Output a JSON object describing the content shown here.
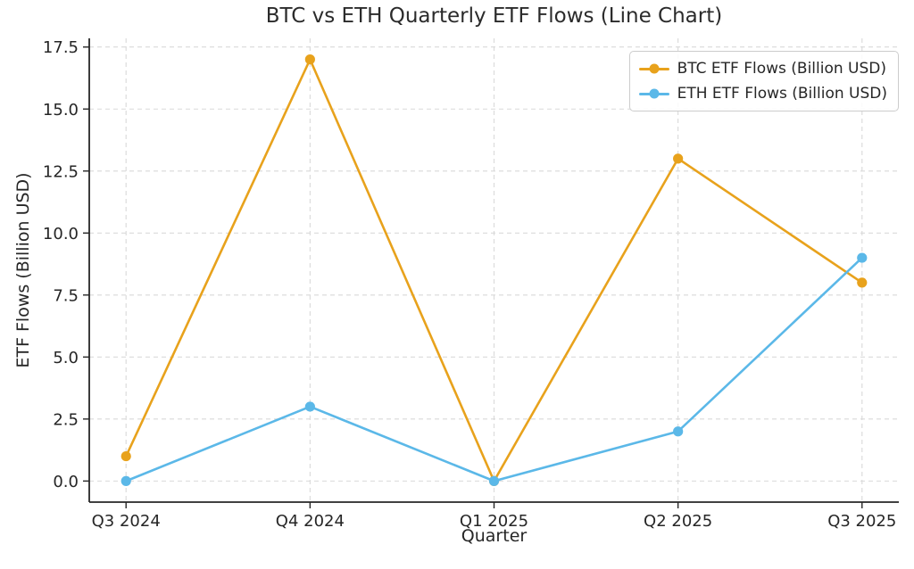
{
  "chart_data": {
    "type": "line",
    "title": "BTC vs ETH Quarterly ETF Flows (Line Chart)",
    "xlabel": "Quarter",
    "ylabel": "ETF Flows (Billion USD)",
    "categories": [
      "Q3 2024",
      "Q4 2024",
      "Q1 2025",
      "Q2 2025",
      "Q3 2025"
    ],
    "series": [
      {
        "id": "btc",
        "name": "BTC ETF Flows (Billion USD)",
        "color": "#E8A21C",
        "values": [
          1,
          17,
          0,
          13,
          8
        ]
      },
      {
        "id": "eth",
        "name": "ETH ETF Flows (Billion USD)",
        "color": "#5BB8E8",
        "values": [
          0,
          3,
          0,
          2,
          9
        ]
      }
    ],
    "yticks": [
      0,
      2.5,
      5,
      7.5,
      10,
      12.5,
      15,
      17.5
    ],
    "ytick_labels": [
      "0.0",
      "2.5",
      "5.0",
      "7.5",
      "10.0",
      "12.5",
      "15.0",
      "17.5"
    ],
    "ylim": [
      -0.85,
      17.85
    ],
    "xlim": [
      -0.2,
      4.2
    ],
    "grid": true,
    "grid_style": "dashed",
    "legend_position": "upper right",
    "colors": {
      "grid": "#D9D9D9",
      "axis": "#262626",
      "text": "#262626",
      "background": "#FFFFFF"
    }
  }
}
